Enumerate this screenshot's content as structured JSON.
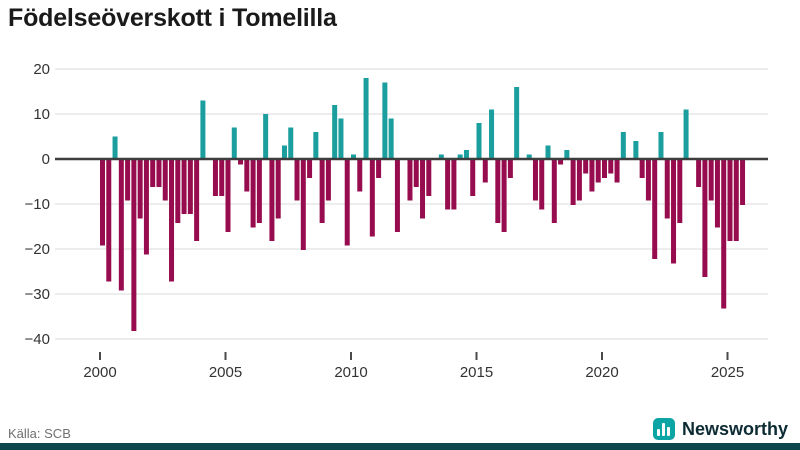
{
  "header": {
    "title": "Födelseöverskott i Tomelilla"
  },
  "footer": {
    "source": "Källa: SCB",
    "brand": "Newsworthy",
    "brand_icon": "bar-chart-icon"
  },
  "colors": {
    "positive": "#1a9e9e",
    "negative": "#970c4e",
    "grid": "#e7e7e7",
    "zero_line": "#3d3d3d",
    "tick": "#4a4a4a",
    "axis_text": "#333333",
    "logo_teal": "#0ca5a5",
    "bottom_strip": "#0d474d"
  },
  "y_axis": {
    "tick_labels": [
      "20",
      "10",
      "0",
      "−10",
      "−20",
      "−30",
      "−40"
    ],
    "tick_values": [
      20,
      10,
      0,
      -10,
      -20,
      -30,
      -40
    ]
  },
  "x_axis": {
    "tick_labels": [
      "2000",
      "2005",
      "2010",
      "2015",
      "2020",
      "2025"
    ],
    "tick_years": [
      2000,
      2005,
      2010,
      2015,
      2020,
      2025
    ]
  },
  "chart_data": {
    "type": "bar",
    "title": "Födelseöverskott i Tomelilla",
    "xlabel": "",
    "ylabel": "",
    "ylim": [
      -40,
      20
    ],
    "x_range": [
      "2000Q1",
      "2025Q3"
    ],
    "grid": "horizontal",
    "legend": "none",
    "positive_color": "#1a9e9e",
    "negative_color": "#970c4e",
    "categories": [
      "2000Q1",
      "2000Q2",
      "2000Q3",
      "2000Q4",
      "2001Q1",
      "2001Q2",
      "2001Q3",
      "2001Q4",
      "2002Q1",
      "2002Q2",
      "2002Q3",
      "2002Q4",
      "2003Q1",
      "2003Q2",
      "2003Q3",
      "2003Q4",
      "2004Q1",
      "2004Q2",
      "2004Q3",
      "2004Q4",
      "2005Q1",
      "2005Q2",
      "2005Q3",
      "2005Q4",
      "2006Q1",
      "2006Q2",
      "2006Q3",
      "2006Q4",
      "2007Q1",
      "2007Q2",
      "2007Q3",
      "2007Q4",
      "2008Q1",
      "2008Q2",
      "2008Q3",
      "2008Q4",
      "2009Q1",
      "2009Q2",
      "2009Q3",
      "2009Q4",
      "2010Q1",
      "2010Q2",
      "2010Q3",
      "2010Q4",
      "2011Q1",
      "2011Q2",
      "2011Q3",
      "2011Q4",
      "2012Q1",
      "2012Q2",
      "2012Q3",
      "2012Q4",
      "2013Q1",
      "2013Q2",
      "2013Q3",
      "2013Q4",
      "2014Q1",
      "2014Q2",
      "2014Q3",
      "2014Q4",
      "2015Q1",
      "2015Q2",
      "2015Q3",
      "2015Q4",
      "2016Q1",
      "2016Q2",
      "2016Q3",
      "2016Q4",
      "2017Q1",
      "2017Q2",
      "2017Q3",
      "2017Q4",
      "2018Q1",
      "2018Q2",
      "2018Q3",
      "2018Q4",
      "2019Q1",
      "2019Q2",
      "2019Q3",
      "2019Q4",
      "2020Q1",
      "2020Q2",
      "2020Q3",
      "2020Q4",
      "2021Q1",
      "2021Q2",
      "2021Q3",
      "2021Q4",
      "2022Q1",
      "2022Q2",
      "2022Q3",
      "2022Q4",
      "2023Q1",
      "2023Q2",
      "2023Q3",
      "2023Q4",
      "2024Q1",
      "2024Q2",
      "2024Q3",
      "2024Q4",
      "2025Q1",
      "2025Q2",
      "2025Q3"
    ],
    "values": [
      -19,
      -27,
      5,
      -29,
      -9,
      -38,
      -13,
      -21,
      -6,
      -6,
      -9,
      -27,
      -14,
      -12,
      -12,
      -18,
      13,
      0,
      -8,
      -8,
      -16,
      7,
      -1,
      -7,
      -15,
      -14,
      10,
      -18,
      -13,
      3,
      7,
      -9,
      -20,
      -4,
      6,
      -14,
      -9,
      12,
      9,
      -19,
      1,
      -7,
      18,
      -17,
      -4,
      17,
      9,
      -16,
      0,
      -9,
      -6,
      -13,
      -8,
      0,
      1,
      -11,
      -11,
      1,
      2,
      -8,
      8,
      -5,
      11,
      -14,
      -16,
      -4,
      16,
      0,
      1,
      -9,
      -11,
      3,
      -14,
      -1,
      2,
      -10,
      -9,
      -3,
      -7,
      -5,
      -4,
      -3,
      -5,
      6,
      0,
      4,
      -4,
      -9,
      -22,
      6,
      -13,
      -23,
      -14,
      11,
      0,
      -6,
      -26,
      -9,
      -15,
      -33,
      -18,
      -18,
      -10
    ]
  }
}
